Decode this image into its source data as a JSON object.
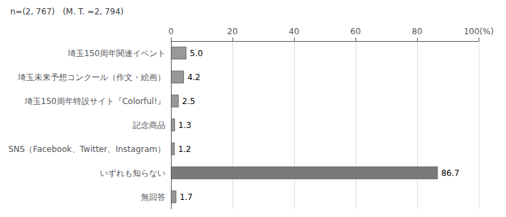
{
  "chart_data": {
    "type": "bar",
    "orientation": "horizontal",
    "title": "n=(2, 767)   (M. T. =2, 794)",
    "categories": [
      "埼玉150周年関連イベント",
      "埼玉未来予想コンクール（作文・絵画）",
      "埼玉150周年特設サイト『Colorful!』",
      "記念商品",
      "SNS（Facebook、Twitter、Instagram）",
      "いずれも知らない",
      "無回答"
    ],
    "values": [
      5.0,
      4.2,
      2.5,
      1.3,
      1.2,
      86.7,
      1.7
    ],
    "value_labels": [
      "5.0",
      "4.2",
      "2.5",
      "1.3",
      "1.2",
      "86.7",
      "1.7"
    ],
    "data_labels": true,
    "colors": [
      "#999999",
      "#999999",
      "#999999",
      "#999999",
      "#999999",
      "#7a7a7a",
      "#999999"
    ],
    "xlim": [
      0,
      100
    ],
    "xticks": [
      0,
      20,
      40,
      60,
      80,
      {
        "value": 100,
        "label": "100(%)"
      }
    ],
    "grid": true
  }
}
